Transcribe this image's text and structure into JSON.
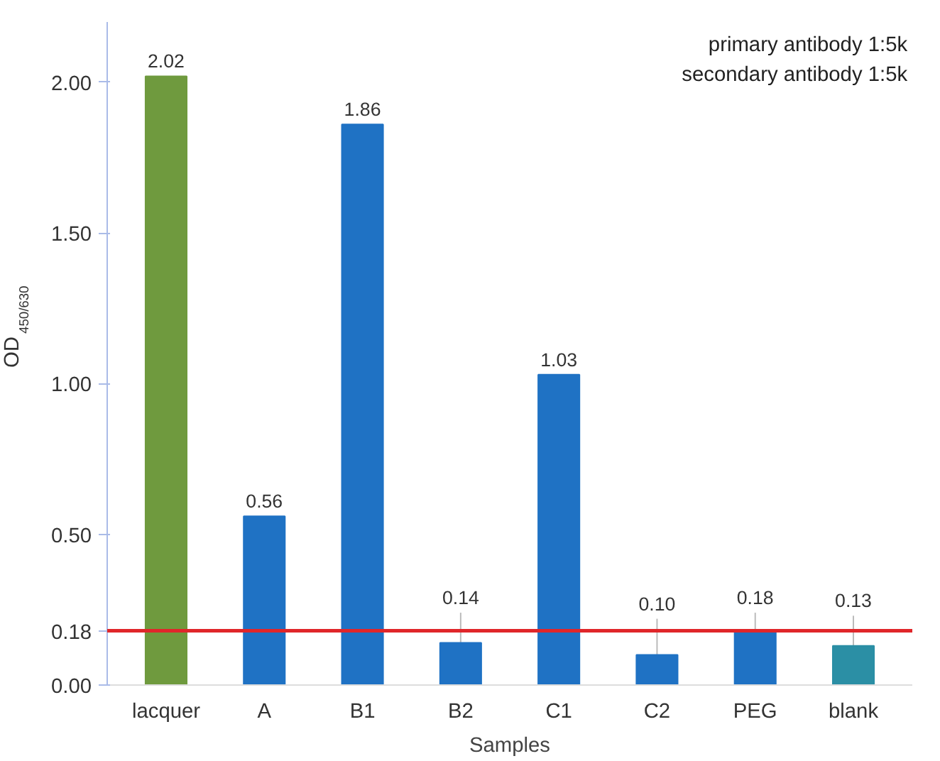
{
  "chart_data": {
    "type": "bar",
    "categories": [
      "lacquer",
      "A",
      "B1",
      "B2",
      "C1",
      "C2",
      "PEG",
      "blank"
    ],
    "values": [
      2.02,
      0.56,
      1.86,
      0.14,
      1.03,
      0.1,
      0.18,
      0.13
    ],
    "colors": [
      "#6f9a3e",
      "#1f72c4",
      "#1f72c4",
      "#1f72c4",
      "#1f72c4",
      "#1f72c4",
      "#1f72c4",
      "#2b8fa5"
    ],
    "value_labels": [
      "2.02",
      "0.56",
      "1.86",
      "0.14",
      "1.03",
      "0.10",
      "0.18",
      "0.13"
    ],
    "errors": [
      null,
      null,
      null,
      0.1,
      null,
      0.12,
      0.06,
      0.1
    ],
    "xlabel": "Samples",
    "ylabel": "OD$_{450/630}$",
    "ylim": [
      0,
      2.2
    ],
    "yticks": [
      {
        "value": 0,
        "label": "0.00"
      },
      {
        "value": 0.18,
        "label": "0.18"
      },
      {
        "value": 0.5,
        "label": "0.50"
      },
      {
        "value": 1,
        "label": "1.00"
      },
      {
        "value": 1.5,
        "label": "1.50"
      },
      {
        "value": 2,
        "label": "2.00"
      }
    ],
    "ref_lines": [
      {
        "axis": "y",
        "value": 0.18,
        "color": "#e0262a"
      }
    ],
    "annotations": [
      "primary antibody 1:5k",
      "secondary antibody 1:5k"
    ],
    "grid": false
  }
}
